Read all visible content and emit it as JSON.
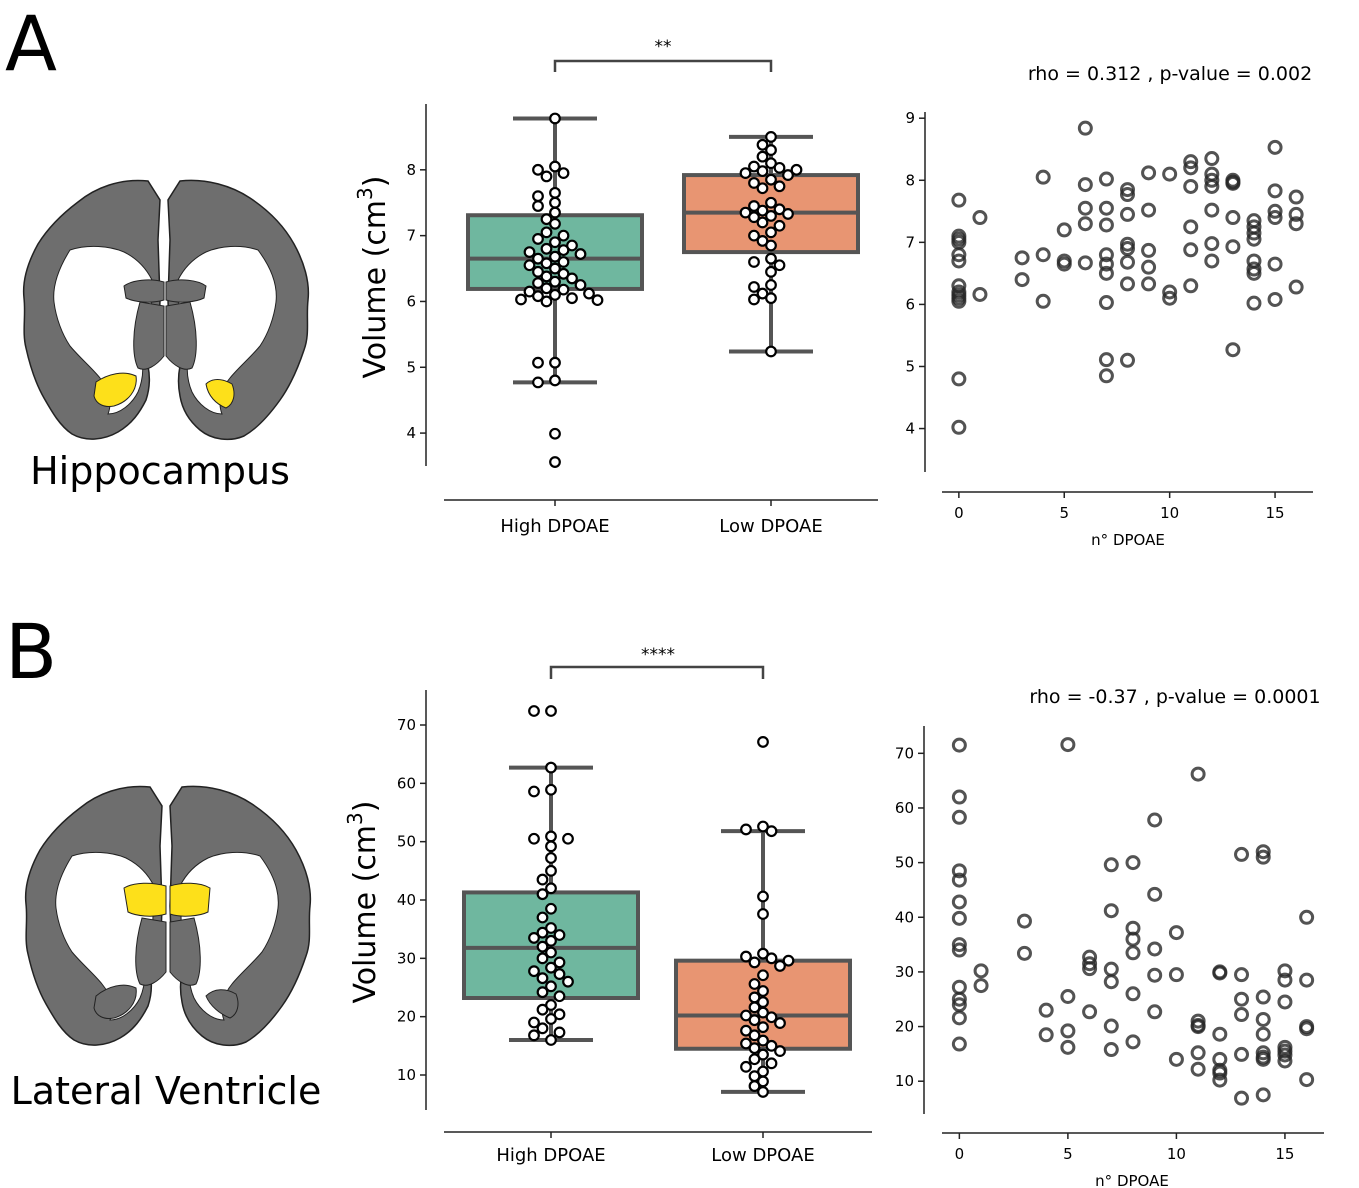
{
  "panels": [
    {
      "letter": "A",
      "region": "Hippocampus",
      "box": {
        "ylabel": "Volume (cm",
        "ylabel_sup": "3",
        "ylabel_close": ")",
        "categories": [
          "High DPOAE",
          "Low DPOAE"
        ],
        "ylim": [
          3.5,
          9.0
        ],
        "yticks": [
          4,
          5,
          6,
          7,
          8
        ],
        "significance": "**",
        "groups": [
          {
            "name": "High DPOAE",
            "color": "#6fb79f",
            "q1": 6.19,
            "median": 6.65,
            "q3": 7.31,
            "whisker_low": 4.77,
            "whisker_high": 8.78,
            "points": [
              8.78,
              8.05,
              8.0,
              7.95,
              7.9,
              7.65,
              7.6,
              7.5,
              7.45,
              7.35,
              7.25,
              7.18,
              7.05,
              7.0,
              6.95,
              6.9,
              6.85,
              6.8,
              6.78,
              6.75,
              6.72,
              6.68,
              6.65,
              6.6,
              6.58,
              6.55,
              6.5,
              6.45,
              6.42,
              6.38,
              6.35,
              6.3,
              6.28,
              6.25,
              6.2,
              6.18,
              6.15,
              6.12,
              6.1,
              6.08,
              6.05,
              6.03,
              6.02,
              6.0,
              5.07,
              5.07,
              4.8,
              4.77,
              3.99,
              3.56
            ]
          },
          {
            "name": "Low DPOAE",
            "color": "#e89572",
            "q1": 6.75,
            "median": 7.35,
            "q3": 7.92,
            "whisker_low": 5.24,
            "whisker_high": 8.5,
            "points": [
              8.5,
              8.38,
              8.3,
              8.2,
              8.1,
              8.05,
              8.03,
              8.0,
              7.98,
              7.95,
              7.92,
              7.85,
              7.8,
              7.75,
              7.72,
              7.5,
              7.45,
              7.4,
              7.38,
              7.35,
              7.33,
              7.3,
              7.28,
              7.2,
              7.15,
              7.05,
              7.0,
              6.92,
              6.85,
              6.65,
              6.6,
              6.55,
              6.45,
              6.25,
              6.22,
              6.12,
              6.05,
              6.03,
              5.24
            ]
          }
        ]
      },
      "scatter": {
        "annotation": "rho = 0.312 , p-value = 0.002",
        "xlabel": "n° DPOAE",
        "xlim": [
          -0.8,
          16.8
        ],
        "ylim": [
          3.3,
          9.1
        ],
        "xticks": [
          0,
          5,
          10,
          15
        ],
        "yticks": [
          4,
          5,
          6,
          7,
          8,
          9
        ],
        "x": [
          0,
          0,
          0,
          0,
          0,
          0,
          0,
          0,
          0,
          0,
          0,
          0,
          0,
          1,
          1,
          3,
          3,
          4,
          4,
          4,
          5,
          5,
          5,
          6,
          6,
          6,
          6,
          6,
          7,
          7,
          7,
          7,
          7,
          7,
          7,
          7,
          7,
          8,
          8,
          8,
          8,
          8,
          8,
          8,
          8,
          9,
          9,
          9,
          9,
          9,
          10,
          10,
          10,
          11,
          11,
          11,
          11,
          11,
          11,
          12,
          12,
          12,
          12,
          12,
          12,
          12,
          13,
          13,
          13,
          13,
          13,
          13,
          14,
          14,
          14,
          14,
          14,
          14,
          14,
          14,
          15,
          15,
          15,
          15,
          15,
          15,
          16,
          16,
          16,
          16
        ],
        "y": [
          7.68,
          7.1,
          7.05,
          7.0,
          6.8,
          6.7,
          6.3,
          6.2,
          6.15,
          6.1,
          6.05,
          4.8,
          4.02,
          7.4,
          6.16,
          6.75,
          6.4,
          8.05,
          6.8,
          6.05,
          7.2,
          6.7,
          6.65,
          8.84,
          7.93,
          7.55,
          7.3,
          6.67,
          8.02,
          7.55,
          7.28,
          6.8,
          6.65,
          6.5,
          6.03,
          5.11,
          4.85,
          7.85,
          7.77,
          7.45,
          6.97,
          6.9,
          6.68,
          6.33,
          5.1,
          8.12,
          7.52,
          6.87,
          6.6,
          6.33,
          8.1,
          6.2,
          6.1,
          8.3,
          8.2,
          7.9,
          7.25,
          6.88,
          6.3,
          8.35,
          8.1,
          8.0,
          7.9,
          7.52,
          6.98,
          6.7,
          8.0,
          7.97,
          7.95,
          7.4,
          6.93,
          5.27,
          7.35,
          7.25,
          7.15,
          7.05,
          6.7,
          6.57,
          6.5,
          6.02,
          8.53,
          7.83,
          7.5,
          7.4,
          6.65,
          6.08,
          7.73,
          7.45,
          7.3,
          6.28
        ]
      }
    },
    {
      "letter": "B",
      "region": "Lateral Ventricle",
      "box": {
        "ylabel": "Volume (cm",
        "ylabel_sup": "3",
        "ylabel_close": ")",
        "categories": [
          "High DPOAE",
          "Low DPOAE"
        ],
        "ylim": [
          4.0,
          76.0
        ],
        "yticks": [
          10,
          20,
          30,
          40,
          50,
          60,
          70
        ],
        "significance": "****",
        "groups": [
          {
            "name": "High DPOAE",
            "color": "#6fb79f",
            "q1": 23.2,
            "median": 31.8,
            "q3": 41.3,
            "whisker_low": 16.0,
            "whisker_high": 62.7,
            "points": [
              72.4,
              72.4,
              62.7,
              58.9,
              58.6,
              50.9,
              50.5,
              50.5,
              49.2,
              47.2,
              45.0,
              43.5,
              42.0,
              41.0,
              38.5,
              37.0,
              35.2,
              34.4,
              34.0,
              33.5,
              33.0,
              32.0,
              31.0,
              30.0,
              29.3,
              28.4,
              27.8,
              27.3,
              26.6,
              26.0,
              25.2,
              24.2,
              23.5,
              22.0,
              21.2,
              20.4,
              19.6,
              19.0,
              18.0,
              17.3,
              16.8,
              16.0
            ]
          },
          {
            "name": "Low DPOAE",
            "color": "#e89572",
            "q1": 14.5,
            "median": 20.2,
            "q3": 29.6,
            "whisker_low": 7.1,
            "whisker_high": 51.8,
            "points": [
              67.1,
              52.6,
              52.1,
              51.8,
              40.6,
              37.6,
              30.8,
              30.3,
              30.0,
              29.6,
              29.3,
              28.7,
              27.1,
              25.6,
              24.4,
              23.3,
              22.5,
              21.6,
              20.7,
              20.2,
              19.9,
              19.4,
              18.9,
              18.2,
              17.6,
              16.8,
              15.9,
              15.4,
              15.0,
              14.6,
              14.1,
              13.5,
              12.7,
              12.0,
              11.4,
              10.6,
              9.8,
              8.9,
              8.1,
              7.1
            ]
          }
        ]
      },
      "scatter": {
        "annotation": "rho = -0.37 , p-value = 0.0001",
        "xlabel": "n° DPOAE",
        "xlim": [
          -0.8,
          16.8
        ],
        "ylim": [
          4.0,
          75.0
        ],
        "xticks": [
          0,
          5,
          10,
          15
        ],
        "yticks": [
          10,
          20,
          30,
          40,
          50,
          60,
          70
        ],
        "x": [
          0,
          0,
          0,
          0,
          0,
          0,
          0,
          0,
          0,
          0,
          0,
          0,
          0,
          0,
          1,
          1,
          3,
          3,
          4,
          4,
          5,
          5,
          5,
          5,
          6,
          6,
          6,
          6,
          7,
          7,
          7,
          7,
          7,
          7,
          8,
          8,
          8,
          8,
          8,
          8,
          9,
          9,
          9,
          9,
          9,
          10,
          10,
          10,
          11,
          11,
          11,
          11,
          11,
          11,
          12,
          12,
          12,
          12,
          12,
          12,
          12,
          13,
          13,
          13,
          13,
          13,
          13,
          14,
          14,
          14,
          14,
          14,
          14,
          14,
          14,
          14,
          15,
          15,
          15,
          15,
          15,
          15,
          15,
          16,
          16,
          16,
          16,
          16
        ],
        "y": [
          71.5,
          62.0,
          58.3,
          48.5,
          46.8,
          42.8,
          39.8,
          35.0,
          34.0,
          27.2,
          25.0,
          24.0,
          21.6,
          16.8,
          30.2,
          27.5,
          39.3,
          33.4,
          23.0,
          18.5,
          71.6,
          25.5,
          19.2,
          16.2,
          32.7,
          31.5,
          30.6,
          22.7,
          49.6,
          41.2,
          30.5,
          28.2,
          20.1,
          15.8,
          50.0,
          38.0,
          36.0,
          33.5,
          26.0,
          17.2,
          57.8,
          44.2,
          34.2,
          29.4,
          22.7,
          37.2,
          29.5,
          14.0,
          66.2,
          21.0,
          20.2,
          15.2,
          12.2,
          20.0,
          30.0,
          29.8,
          18.6,
          14.0,
          12.0,
          10.2,
          11.5,
          51.5,
          29.5,
          25.0,
          22.2,
          14.9,
          6.9,
          52.0,
          51.0,
          25.4,
          21.3,
          18.6,
          15.2,
          14.4,
          14.0,
          7.5,
          30.2,
          28.5,
          24.5,
          16.2,
          15.5,
          14.8,
          13.7,
          40.0,
          28.5,
          20.0,
          19.6,
          10.3
        ]
      }
    }
  ]
}
